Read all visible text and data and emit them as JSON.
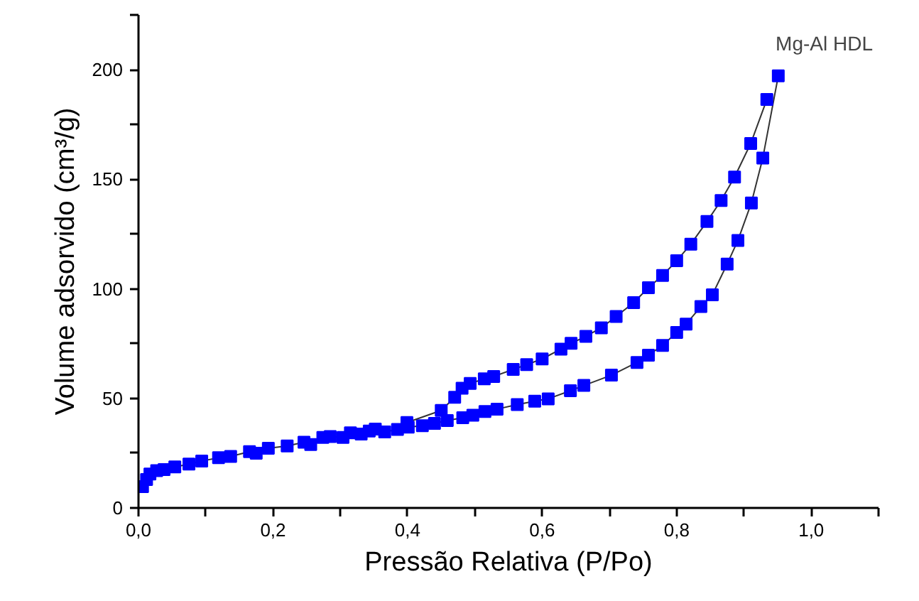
{
  "chart_data": {
    "type": "line",
    "xlabel": "Pressão Relativa (P/Po)",
    "ylabel": "Volume adsorvido (cm³/g)",
    "annotations": [
      "Mg-Al HDL"
    ],
    "xlim": [
      0,
      1.1
    ],
    "ylim": [
      0,
      225
    ],
    "xticks": [
      {
        "value": 0,
        "label": "0,0"
      },
      {
        "value": 0.1,
        "label": null
      },
      {
        "value": 0.2,
        "label": "0,2"
      },
      {
        "value": 0.3,
        "label": null
      },
      {
        "value": 0.4,
        "label": "0,4"
      },
      {
        "value": 0.5,
        "label": null
      },
      {
        "value": 0.6,
        "label": "0,6"
      },
      {
        "value": 0.7,
        "label": null
      },
      {
        "value": 0.8,
        "label": "0,8"
      },
      {
        "value": 0.9,
        "label": null
      },
      {
        "value": 1.0,
        "label": "1,0"
      },
      {
        "value": 1.1,
        "label": null
      }
    ],
    "yticks": [
      0,
      {
        "value": 25,
        "label": null
      },
      50,
      {
        "value": 75,
        "label": null
      },
      100,
      {
        "value": 125,
        "label": null
      },
      150,
      {
        "value": 175,
        "label": null
      },
      200,
      {
        "value": 225,
        "label": null
      }
    ],
    "grid": false,
    "marker": "square",
    "line_style": "solid",
    "series": [
      {
        "color": "#0000ff",
        "x": [
          0.006,
          0.012,
          0.017,
          0.027,
          0.038,
          0.054,
          0.075,
          0.094,
          0.119,
          0.137,
          0.165,
          0.175,
          0.193,
          0.221,
          0.246,
          0.256,
          0.274,
          0.285,
          0.304,
          0.315,
          0.331,
          0.343,
          0.352,
          0.366,
          0.385,
          0.401,
          0.422,
          0.44,
          0.459,
          0.482,
          0.497,
          0.515,
          0.533,
          0.563,
          0.589,
          0.609,
          0.642,
          0.662,
          0.703,
          0.741,
          0.758,
          0.779,
          0.8,
          0.814,
          0.836,
          0.853,
          0.875,
          0.891,
          0.911,
          0.928,
          0.951
        ],
        "values": [
          9.7,
          13,
          15.5,
          17,
          17.5,
          18.7,
          20,
          21.4,
          22.9,
          23.5,
          25.7,
          25,
          27.2,
          28.3,
          30,
          28.9,
          32.2,
          32.6,
          32.2,
          34.3,
          33.7,
          35.1,
          36,
          34.7,
          35.8,
          36.9,
          37.5,
          38.6,
          39.9,
          41.2,
          42.3,
          44,
          45.1,
          47.2,
          48.7,
          49.8,
          53.5,
          55.9,
          60.6,
          66.4,
          69.7,
          74.2,
          80.1,
          83.9,
          91.9,
          97.3,
          111.3,
          122.1,
          139.2,
          159.7,
          197.2
        ]
      },
      {
        "color": "#0000ff",
        "x": [
          0.934,
          0.91,
          0.886,
          0.866,
          0.845,
          0.821,
          0.8,
          0.779,
          0.758,
          0.736,
          0.71,
          0.688,
          0.665,
          0.643,
          0.628,
          0.6,
          0.577,
          0.557,
          0.528,
          0.514,
          0.493,
          0.481,
          0.47,
          0.45,
          0.399
        ],
        "values": [
          186.4,
          166.3,
          151,
          140.3,
          130.7,
          120.4,
          112.8,
          106.1,
          100.5,
          93.7,
          87.4,
          82.2,
          78.3,
          75.1,
          72.5,
          68,
          65.4,
          63.2,
          60,
          58.9,
          56.8,
          54.6,
          50.5,
          44.5,
          39
        ]
      }
    ]
  }
}
